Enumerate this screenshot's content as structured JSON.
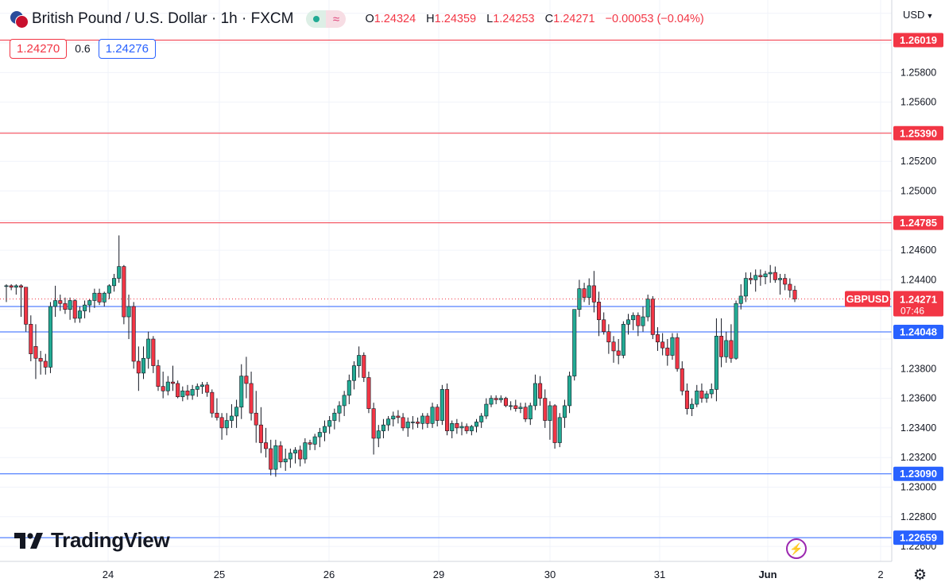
{
  "header": {
    "symbol_title": "British Pound / U.S. Dollar · 1h · FXCM",
    "ohlc": {
      "open_label": "O",
      "open": "1.24324",
      "high_label": "H",
      "high": "1.24359",
      "low_label": "L",
      "low": "1.24253",
      "close_label": "C",
      "close": "1.24271",
      "change": "−0.00053 (−0.04%)"
    }
  },
  "quote": {
    "sell": "1.24270",
    "spread": "0.6",
    "buy": "1.24276"
  },
  "currency": "USD",
  "brand": "TradingView",
  "colors": {
    "up": "#22ab94",
    "down": "#f23645",
    "wick": "#131722",
    "resistance": "#f23645",
    "support": "#2962ff",
    "last_price_label": "#f23645",
    "grid": "#f0f3fa"
  },
  "chart_data": {
    "type": "candlestick",
    "symbol": "GBPUSD",
    "interval": "1h",
    "x_tick_labels": [
      "24",
      "25",
      "26",
      "29",
      "30",
      "31",
      "Jun",
      "2"
    ],
    "y_tick_labels": [
      "1.25800",
      "1.25600",
      "1.25200",
      "1.25000",
      "1.24600",
      "1.24400",
      "1.23800",
      "1.23600",
      "1.23400",
      "1.23200",
      "1.23000",
      "1.22800",
      "1.22600"
    ],
    "ylim": [
      1.2252,
      1.2622
    ],
    "grid": true,
    "horizontal_levels": [
      {
        "value": 1.26019,
        "label": "1.26019",
        "color": "resistance"
      },
      {
        "value": 1.2539,
        "label": "1.25390",
        "color": "resistance"
      },
      {
        "value": 1.24785,
        "label": "1.24785",
        "color": "resistance"
      },
      {
        "value": 1.2422,
        "label": "1.24220",
        "color": "support"
      },
      {
        "value": 1.24048,
        "label": "1.24048",
        "color": "support"
      },
      {
        "value": 1.2309,
        "label": "1.23090",
        "color": "support"
      },
      {
        "value": 1.22659,
        "label": "1.22659",
        "color": "support"
      }
    ],
    "last_price": {
      "symbol_label": "GBPUSD",
      "value": "1.24271",
      "countdown": "07:46"
    },
    "candles": [
      {
        "o": 1.2436,
        "h": 1.2437,
        "l": 1.2425,
        "c": 1.2436
      },
      {
        "o": 1.2436,
        "h": 1.2437,
        "l": 1.2433,
        "c": 1.2435
      },
      {
        "o": 1.2435,
        "h": 1.2437,
        "l": 1.243,
        "c": 1.2436
      },
      {
        "o": 1.2436,
        "h": 1.2437,
        "l": 1.2415,
        "c": 1.2435
      },
      {
        "o": 1.2435,
        "h": 1.2435,
        "l": 1.2405,
        "c": 1.241
      },
      {
        "o": 1.241,
        "h": 1.2416,
        "l": 1.2385,
        "c": 1.239
      },
      {
        "o": 1.2395,
        "h": 1.241,
        "l": 1.2373,
        "c": 1.2387
      },
      {
        "o": 1.2387,
        "h": 1.2392,
        "l": 1.2376,
        "c": 1.2385
      },
      {
        "o": 1.2385,
        "h": 1.239,
        "l": 1.2376,
        "c": 1.2381
      },
      {
        "o": 1.2381,
        "h": 1.2425,
        "l": 1.2377,
        "c": 1.2422
      },
      {
        "o": 1.2422,
        "h": 1.2436,
        "l": 1.2415,
        "c": 1.2426
      },
      {
        "o": 1.2426,
        "h": 1.243,
        "l": 1.2419,
        "c": 1.2424
      },
      {
        "o": 1.2424,
        "h": 1.2428,
        "l": 1.2417,
        "c": 1.242
      },
      {
        "o": 1.242,
        "h": 1.2428,
        "l": 1.2413,
        "c": 1.2426
      },
      {
        "o": 1.2426,
        "h": 1.2427,
        "l": 1.2411,
        "c": 1.2414
      },
      {
        "o": 1.2414,
        "h": 1.2422,
        "l": 1.2411,
        "c": 1.2419
      },
      {
        "o": 1.2419,
        "h": 1.2426,
        "l": 1.2414,
        "c": 1.2423
      },
      {
        "o": 1.2423,
        "h": 1.2427,
        "l": 1.2418,
        "c": 1.2426
      },
      {
        "o": 1.2426,
        "h": 1.2434,
        "l": 1.2421,
        "c": 1.2431
      },
      {
        "o": 1.2431,
        "h": 1.2434,
        "l": 1.2423,
        "c": 1.2425
      },
      {
        "o": 1.2425,
        "h": 1.2432,
        "l": 1.2422,
        "c": 1.2431
      },
      {
        "o": 1.2431,
        "h": 1.2437,
        "l": 1.2427,
        "c": 1.2436
      },
      {
        "o": 1.2436,
        "h": 1.2444,
        "l": 1.2432,
        "c": 1.2441
      },
      {
        "o": 1.2441,
        "h": 1.247,
        "l": 1.2438,
        "c": 1.2449
      },
      {
        "o": 1.2449,
        "h": 1.245,
        "l": 1.241,
        "c": 1.2415
      },
      {
        "o": 1.2415,
        "h": 1.243,
        "l": 1.24,
        "c": 1.2422
      },
      {
        "o": 1.2422,
        "h": 1.2425,
        "l": 1.238,
        "c": 1.2385
      },
      {
        "o": 1.2385,
        "h": 1.2395,
        "l": 1.2365,
        "c": 1.2377
      },
      {
        "o": 1.2377,
        "h": 1.2395,
        "l": 1.2373,
        "c": 1.2387
      },
      {
        "o": 1.2387,
        "h": 1.2405,
        "l": 1.238,
        "c": 1.24
      },
      {
        "o": 1.24,
        "h": 1.2402,
        "l": 1.2377,
        "c": 1.2382
      },
      {
        "o": 1.2382,
        "h": 1.2386,
        "l": 1.2365,
        "c": 1.2368
      },
      {
        "o": 1.2368,
        "h": 1.2378,
        "l": 1.236,
        "c": 1.2365
      },
      {
        "o": 1.2365,
        "h": 1.2375,
        "l": 1.2362,
        "c": 1.2371
      },
      {
        "o": 1.2371,
        "h": 1.2382,
        "l": 1.2365,
        "c": 1.237
      },
      {
        "o": 1.237,
        "h": 1.2372,
        "l": 1.236,
        "c": 1.2361
      },
      {
        "o": 1.2361,
        "h": 1.2368,
        "l": 1.2358,
        "c": 1.2365
      },
      {
        "o": 1.2365,
        "h": 1.2369,
        "l": 1.2359,
        "c": 1.2362
      },
      {
        "o": 1.2362,
        "h": 1.2369,
        "l": 1.2359,
        "c": 1.2366
      },
      {
        "o": 1.2366,
        "h": 1.237,
        "l": 1.2361,
        "c": 1.2368
      },
      {
        "o": 1.2368,
        "h": 1.2371,
        "l": 1.2363,
        "c": 1.2369
      },
      {
        "o": 1.2369,
        "h": 1.2371,
        "l": 1.2361,
        "c": 1.2364
      },
      {
        "o": 1.2364,
        "h": 1.2366,
        "l": 1.2347,
        "c": 1.235
      },
      {
        "o": 1.235,
        "h": 1.236,
        "l": 1.2345,
        "c": 1.2347
      },
      {
        "o": 1.2347,
        "h": 1.235,
        "l": 1.2332,
        "c": 1.234
      },
      {
        "o": 1.234,
        "h": 1.235,
        "l": 1.2335,
        "c": 1.2345
      },
      {
        "o": 1.2345,
        "h": 1.2356,
        "l": 1.234,
        "c": 1.2348
      },
      {
        "o": 1.2348,
        "h": 1.2359,
        "l": 1.234,
        "c": 1.2354
      },
      {
        "o": 1.2354,
        "h": 1.2383,
        "l": 1.2346,
        "c": 1.2375
      },
      {
        "o": 1.2375,
        "h": 1.2388,
        "l": 1.236,
        "c": 1.237
      },
      {
        "o": 1.237,
        "h": 1.2378,
        "l": 1.2345,
        "c": 1.235
      },
      {
        "o": 1.235,
        "h": 1.2365,
        "l": 1.233,
        "c": 1.2342
      },
      {
        "o": 1.2342,
        "h": 1.2354,
        "l": 1.2323,
        "c": 1.233
      },
      {
        "o": 1.233,
        "h": 1.234,
        "l": 1.232,
        "c": 1.2326
      },
      {
        "o": 1.2326,
        "h": 1.2332,
        "l": 1.2308,
        "c": 1.2312
      },
      {
        "o": 1.2312,
        "h": 1.2332,
        "l": 1.2307,
        "c": 1.2328
      },
      {
        "o": 1.2328,
        "h": 1.2331,
        "l": 1.2313,
        "c": 1.2317
      },
      {
        "o": 1.2317,
        "h": 1.2326,
        "l": 1.2311,
        "c": 1.2319
      },
      {
        "o": 1.2319,
        "h": 1.2326,
        "l": 1.2313,
        "c": 1.2323
      },
      {
        "o": 1.2323,
        "h": 1.2327,
        "l": 1.2316,
        "c": 1.2325
      },
      {
        "o": 1.2325,
        "h": 1.2328,
        "l": 1.2314,
        "c": 1.2319
      },
      {
        "o": 1.2319,
        "h": 1.2333,
        "l": 1.2316,
        "c": 1.233
      },
      {
        "o": 1.233,
        "h": 1.2332,
        "l": 1.2325,
        "c": 1.2329
      },
      {
        "o": 1.2329,
        "h": 1.2336,
        "l": 1.2325,
        "c": 1.2334
      },
      {
        "o": 1.2334,
        "h": 1.234,
        "l": 1.2327,
        "c": 1.2337
      },
      {
        "o": 1.2337,
        "h": 1.2345,
        "l": 1.2331,
        "c": 1.2341
      },
      {
        "o": 1.2341,
        "h": 1.2348,
        "l": 1.2336,
        "c": 1.2345
      },
      {
        "o": 1.2345,
        "h": 1.2353,
        "l": 1.2339,
        "c": 1.235
      },
      {
        "o": 1.235,
        "h": 1.2358,
        "l": 1.2344,
        "c": 1.2355
      },
      {
        "o": 1.2355,
        "h": 1.2365,
        "l": 1.2348,
        "c": 1.2362
      },
      {
        "o": 1.2362,
        "h": 1.2376,
        "l": 1.2356,
        "c": 1.2372
      },
      {
        "o": 1.2372,
        "h": 1.2385,
        "l": 1.2366,
        "c": 1.2382
      },
      {
        "o": 1.2382,
        "h": 1.2395,
        "l": 1.2374,
        "c": 1.2389
      },
      {
        "o": 1.2389,
        "h": 1.2391,
        "l": 1.2371,
        "c": 1.2374
      },
      {
        "o": 1.2374,
        "h": 1.2378,
        "l": 1.235,
        "c": 1.2353
      },
      {
        "o": 1.2353,
        "h": 1.2357,
        "l": 1.2322,
        "c": 1.2333
      },
      {
        "o": 1.2333,
        "h": 1.2342,
        "l": 1.2327,
        "c": 1.2338
      },
      {
        "o": 1.2338,
        "h": 1.2346,
        "l": 1.2333,
        "c": 1.2342
      },
      {
        "o": 1.2342,
        "h": 1.2348,
        "l": 1.2338,
        "c": 1.2346
      },
      {
        "o": 1.2346,
        "h": 1.2351,
        "l": 1.2341,
        "c": 1.2348
      },
      {
        "o": 1.2348,
        "h": 1.2352,
        "l": 1.2343,
        "c": 1.2347
      },
      {
        "o": 1.2347,
        "h": 1.235,
        "l": 1.2338,
        "c": 1.234
      },
      {
        "o": 1.234,
        "h": 1.2347,
        "l": 1.2334,
        "c": 1.2344
      },
      {
        "o": 1.2344,
        "h": 1.2348,
        "l": 1.2339,
        "c": 1.2344
      },
      {
        "o": 1.2344,
        "h": 1.2347,
        "l": 1.234,
        "c": 1.2343
      },
      {
        "o": 1.2343,
        "h": 1.235,
        "l": 1.2339,
        "c": 1.2348
      },
      {
        "o": 1.2348,
        "h": 1.235,
        "l": 1.234,
        "c": 1.2343
      },
      {
        "o": 1.2343,
        "h": 1.2357,
        "l": 1.234,
        "c": 1.2354
      },
      {
        "o": 1.2354,
        "h": 1.2356,
        "l": 1.2341,
        "c": 1.2345
      },
      {
        "o": 1.2345,
        "h": 1.2369,
        "l": 1.2342,
        "c": 1.2366
      },
      {
        "o": 1.2366,
        "h": 1.237,
        "l": 1.2335,
        "c": 1.2338
      },
      {
        "o": 1.2338,
        "h": 1.2345,
        "l": 1.2333,
        "c": 1.2343
      },
      {
        "o": 1.2343,
        "h": 1.2346,
        "l": 1.2336,
        "c": 1.234
      },
      {
        "o": 1.234,
        "h": 1.2344,
        "l": 1.2335,
        "c": 1.2341
      },
      {
        "o": 1.2341,
        "h": 1.2343,
        "l": 1.2336,
        "c": 1.2338
      },
      {
        "o": 1.2338,
        "h": 1.2342,
        "l": 1.2335,
        "c": 1.2341
      },
      {
        "o": 1.2341,
        "h": 1.2346,
        "l": 1.2337,
        "c": 1.2344
      },
      {
        "o": 1.2344,
        "h": 1.235,
        "l": 1.234,
        "c": 1.2348
      },
      {
        "o": 1.2348,
        "h": 1.236,
        "l": 1.2346,
        "c": 1.2356
      },
      {
        "o": 1.2356,
        "h": 1.2362,
        "l": 1.2354,
        "c": 1.236
      },
      {
        "o": 1.236,
        "h": 1.2362,
        "l": 1.2356,
        "c": 1.2359
      },
      {
        "o": 1.2359,
        "h": 1.2362,
        "l": 1.2357,
        "c": 1.236
      },
      {
        "o": 1.236,
        "h": 1.2361,
        "l": 1.2354,
        "c": 1.2355
      },
      {
        "o": 1.2355,
        "h": 1.2358,
        "l": 1.2352,
        "c": 1.2355
      },
      {
        "o": 1.2355,
        "h": 1.2359,
        "l": 1.2351,
        "c": 1.2353
      },
      {
        "o": 1.2353,
        "h": 1.2357,
        "l": 1.235,
        "c": 1.2354
      },
      {
        "o": 1.2354,
        "h": 1.2357,
        "l": 1.2344,
        "c": 1.2346
      },
      {
        "o": 1.2346,
        "h": 1.2357,
        "l": 1.2342,
        "c": 1.2355
      },
      {
        "o": 1.2355,
        "h": 1.2376,
        "l": 1.2352,
        "c": 1.237
      },
      {
        "o": 1.237,
        "h": 1.2375,
        "l": 1.2355,
        "c": 1.236
      },
      {
        "o": 1.236,
        "h": 1.2366,
        "l": 1.234,
        "c": 1.2345
      },
      {
        "o": 1.2345,
        "h": 1.2358,
        "l": 1.2332,
        "c": 1.2355
      },
      {
        "o": 1.2355,
        "h": 1.2356,
        "l": 1.2326,
        "c": 1.233
      },
      {
        "o": 1.233,
        "h": 1.235,
        "l": 1.2327,
        "c": 1.2347
      },
      {
        "o": 1.2347,
        "h": 1.2359,
        "l": 1.234,
        "c": 1.2355
      },
      {
        "o": 1.2355,
        "h": 1.2378,
        "l": 1.235,
        "c": 1.2375
      },
      {
        "o": 1.2375,
        "h": 1.242,
        "l": 1.2372,
        "c": 1.242
      },
      {
        "o": 1.242,
        "h": 1.244,
        "l": 1.2415,
        "c": 1.2434
      },
      {
        "o": 1.2434,
        "h": 1.2438,
        "l": 1.2425,
        "c": 1.2428
      },
      {
        "o": 1.2428,
        "h": 1.2441,
        "l": 1.2423,
        "c": 1.2436
      },
      {
        "o": 1.2436,
        "h": 1.2446,
        "l": 1.2418,
        "c": 1.2425
      },
      {
        "o": 1.2425,
        "h": 1.2432,
        "l": 1.2402,
        "c": 1.2413
      },
      {
        "o": 1.2413,
        "h": 1.2418,
        "l": 1.2403,
        "c": 1.2405
      },
      {
        "o": 1.2405,
        "h": 1.241,
        "l": 1.239,
        "c": 1.2398
      },
      {
        "o": 1.2398,
        "h": 1.2402,
        "l": 1.2384,
        "c": 1.2392
      },
      {
        "o": 1.2392,
        "h": 1.24,
        "l": 1.2383,
        "c": 1.2389
      },
      {
        "o": 1.2389,
        "h": 1.2412,
        "l": 1.2387,
        "c": 1.241
      },
      {
        "o": 1.241,
        "h": 1.2417,
        "l": 1.2403,
        "c": 1.2413
      },
      {
        "o": 1.2413,
        "h": 1.2418,
        "l": 1.2406,
        "c": 1.2416
      },
      {
        "o": 1.2416,
        "h": 1.2418,
        "l": 1.2402,
        "c": 1.2409
      },
      {
        "o": 1.2409,
        "h": 1.2422,
        "l": 1.2405,
        "c": 1.2415
      },
      {
        "o": 1.2415,
        "h": 1.243,
        "l": 1.2412,
        "c": 1.2427
      },
      {
        "o": 1.2427,
        "h": 1.2429,
        "l": 1.24,
        "c": 1.2403
      },
      {
        "o": 1.2403,
        "h": 1.2408,
        "l": 1.2392,
        "c": 1.2398
      },
      {
        "o": 1.2398,
        "h": 1.2404,
        "l": 1.2389,
        "c": 1.2394
      },
      {
        "o": 1.2394,
        "h": 1.24,
        "l": 1.2382,
        "c": 1.2389
      },
      {
        "o": 1.2389,
        "h": 1.2404,
        "l": 1.2386,
        "c": 1.2401
      },
      {
        "o": 1.2401,
        "h": 1.2404,
        "l": 1.2378,
        "c": 1.238
      },
      {
        "o": 1.238,
        "h": 1.2385,
        "l": 1.2362,
        "c": 1.2365
      },
      {
        "o": 1.2365,
        "h": 1.237,
        "l": 1.2349,
        "c": 1.2353
      },
      {
        "o": 1.2353,
        "h": 1.236,
        "l": 1.2348,
        "c": 1.2356
      },
      {
        "o": 1.2356,
        "h": 1.2369,
        "l": 1.2354,
        "c": 1.2365
      },
      {
        "o": 1.2365,
        "h": 1.237,
        "l": 1.2357,
        "c": 1.236
      },
      {
        "o": 1.236,
        "h": 1.2365,
        "l": 1.2357,
        "c": 1.2363
      },
      {
        "o": 1.2363,
        "h": 1.237,
        "l": 1.236,
        "c": 1.2366
      },
      {
        "o": 1.2366,
        "h": 1.2414,
        "l": 1.2358,
        "c": 1.2402
      },
      {
        "o": 1.2402,
        "h": 1.2414,
        "l": 1.2381,
        "c": 1.2388
      },
      {
        "o": 1.2388,
        "h": 1.2405,
        "l": 1.2384,
        "c": 1.2399
      },
      {
        "o": 1.2399,
        "h": 1.241,
        "l": 1.2384,
        "c": 1.2387
      },
      {
        "o": 1.2387,
        "h": 1.2426,
        "l": 1.2386,
        "c": 1.2424
      },
      {
        "o": 1.2424,
        "h": 1.2437,
        "l": 1.242,
        "c": 1.2429
      },
      {
        "o": 1.2429,
        "h": 1.2445,
        "l": 1.2425,
        "c": 1.2441
      },
      {
        "o": 1.2441,
        "h": 1.2445,
        "l": 1.2437,
        "c": 1.244
      },
      {
        "o": 1.244,
        "h": 1.2447,
        "l": 1.2432,
        "c": 1.2443
      },
      {
        "o": 1.2443,
        "h": 1.2447,
        "l": 1.2436,
        "c": 1.2442
      },
      {
        "o": 1.2442,
        "h": 1.2446,
        "l": 1.2437,
        "c": 1.2444
      },
      {
        "o": 1.2444,
        "h": 1.245,
        "l": 1.2438,
        "c": 1.2445
      },
      {
        "o": 1.2445,
        "h": 1.2449,
        "l": 1.2438,
        "c": 1.244
      },
      {
        "o": 1.244,
        "h": 1.2444,
        "l": 1.243,
        "c": 1.2441
      },
      {
        "o": 1.2441,
        "h": 1.2444,
        "l": 1.2433,
        "c": 1.2437
      },
      {
        "o": 1.2437,
        "h": 1.2441,
        "l": 1.2428,
        "c": 1.2433
      },
      {
        "o": 1.2433,
        "h": 1.2436,
        "l": 1.2425,
        "c": 1.2427
      }
    ]
  }
}
